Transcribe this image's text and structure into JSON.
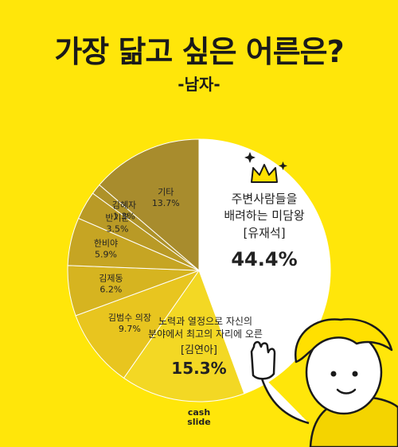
{
  "title": "가장 닮고 싶은 어른은?",
  "subtitle": "-남자-",
  "brand": {
    "line1": "cash",
    "line2": "slide"
  },
  "chart_data": {
    "type": "pie",
    "slices": [
      {
        "label_lines": [
          "주변사람들을",
          "배려하는 미담왕"
        ],
        "name": "[유재석]",
        "value": 44.4,
        "display": "44.4%",
        "color": "#ffffff"
      },
      {
        "label_lines": [
          "노력과 열정으로 자신의",
          "분야에서 최고의 자리에 오른"
        ],
        "name": "[김연아]",
        "value": 15.3,
        "display": "15.3%",
        "color": "#f3d824"
      },
      {
        "label_lines": [],
        "name": "김범수 의장",
        "value": 9.7,
        "display": "9.7%",
        "color": "#e8c51f"
      },
      {
        "label_lines": [],
        "name": "김제동",
        "value": 6.2,
        "display": "6.2%",
        "color": "#d6b420"
      },
      {
        "label_lines": [],
        "name": "한비야",
        "value": 5.9,
        "display": "5.9%",
        "color": "#c6a523"
      },
      {
        "label_lines": [],
        "name": "반기문",
        "value": 3.5,
        "display": "3.5%",
        "color": "#b99a26"
      },
      {
        "label_lines": [],
        "name": "김혜자",
        "value": 1.3,
        "display": "1.3%",
        "color": "#ae9229"
      },
      {
        "label_lines": [],
        "name": "기타",
        "value": 13.7,
        "display": "13.7%",
        "color": "#a88c2d"
      }
    ]
  }
}
